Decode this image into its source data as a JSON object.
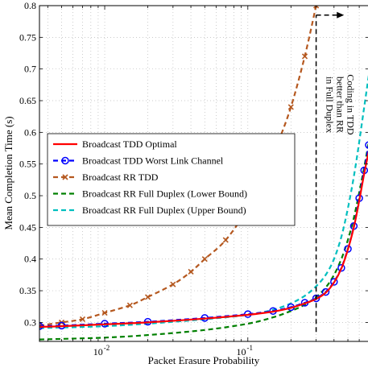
{
  "chart_data": {
    "type": "line",
    "xlabel": "Packet Erasure Probability",
    "ylabel": "Mean Completion Time (s)",
    "xscale": "log",
    "xlim": [
      0.0035,
      0.7
    ],
    "ylim": [
      0.27,
      0.8
    ],
    "grid": true,
    "legend_position": "center-left",
    "x_ticks": [
      {
        "value": 0.01,
        "label": "10",
        "exp": "-2"
      },
      {
        "value": 0.1,
        "label": "10",
        "exp": "-1"
      }
    ],
    "y_ticks": [
      0.3,
      0.35,
      0.4,
      0.45,
      0.5,
      0.55,
      0.6,
      0.65,
      0.7,
      0.75,
      0.8
    ],
    "y_tick_labels": [
      "0.3",
      "0.35",
      "0.4",
      "0.45",
      "0.5",
      "0.55",
      "0.6",
      "0.65",
      "0.7",
      "0.75",
      "0.8"
    ],
    "annotation": {
      "lines": [
        "Coding in TDD",
        "better than RR",
        "in Full Duplex"
      ],
      "x": 0.3,
      "y_bottom": 0.285,
      "y_top": 0.785,
      "arrow_to_x": 0.47
    },
    "series": [
      {
        "name": "Broadcast TDD Optimal",
        "color": "#ff0000",
        "dash": "solid",
        "marker": "none",
        "x": [
          0.0035,
          0.005,
          0.01,
          0.02,
          0.05,
          0.1,
          0.15,
          0.2,
          0.25,
          0.3,
          0.35,
          0.4,
          0.45,
          0.5,
          0.55,
          0.6,
          0.65,
          0.7
        ],
        "y": [
          0.293,
          0.294,
          0.297,
          0.3,
          0.306,
          0.312,
          0.317,
          0.323,
          0.33,
          0.337,
          0.347,
          0.363,
          0.385,
          0.415,
          0.45,
          0.492,
          0.535,
          0.57
        ]
      },
      {
        "name": "Broadcast TDD Worst Link Channel",
        "color": "#0000ff",
        "dash": "dashed",
        "marker": "circle",
        "x": [
          0.0035,
          0.005,
          0.01,
          0.02,
          0.05,
          0.1,
          0.15,
          0.2,
          0.25,
          0.3,
          0.35,
          0.4,
          0.45,
          0.5,
          0.55,
          0.6,
          0.65,
          0.7
        ],
        "y": [
          0.294,
          0.295,
          0.298,
          0.301,
          0.307,
          0.313,
          0.318,
          0.324,
          0.331,
          0.338,
          0.348,
          0.364,
          0.386,
          0.416,
          0.452,
          0.496,
          0.54,
          0.58
        ]
      },
      {
        "name": "Broadcast RR TDD",
        "color": "#b5581f",
        "dash": "dashed",
        "marker": "x",
        "x": [
          0.0035,
          0.005,
          0.007,
          0.01,
          0.015,
          0.02,
          0.03,
          0.04,
          0.05,
          0.07,
          0.1,
          0.13,
          0.16,
          0.2,
          0.25,
          0.3
        ],
        "y": [
          0.295,
          0.3,
          0.305,
          0.315,
          0.327,
          0.34,
          0.36,
          0.38,
          0.4,
          0.43,
          0.48,
          0.53,
          0.58,
          0.64,
          0.72,
          0.8
        ]
      },
      {
        "name": "Broadcast RR Full Duplex (Lower Bound)",
        "color": "#008000",
        "dash": "dashed",
        "marker": "none",
        "x": [
          0.0035,
          0.005,
          0.01,
          0.02,
          0.05,
          0.1,
          0.15,
          0.2,
          0.25,
          0.3,
          0.35,
          0.4,
          0.45,
          0.5,
          0.55,
          0.6,
          0.65,
          0.7
        ],
        "y": [
          0.273,
          0.274,
          0.276,
          0.28,
          0.288,
          0.298,
          0.308,
          0.318,
          0.328,
          0.34,
          0.355,
          0.375,
          0.4,
          0.43,
          0.465,
          0.505,
          0.545,
          0.585
        ]
      },
      {
        "name": "Broadcast RR Full Duplex (Upper Bound)",
        "color": "#00bfbf",
        "dash": "dashed",
        "marker": "none",
        "x": [
          0.0035,
          0.005,
          0.01,
          0.02,
          0.05,
          0.1,
          0.15,
          0.2,
          0.25,
          0.3,
          0.35,
          0.4,
          0.45,
          0.5,
          0.55,
          0.6,
          0.65,
          0.7
        ],
        "y": [
          0.291,
          0.292,
          0.294,
          0.298,
          0.305,
          0.312,
          0.32,
          0.33,
          0.342,
          0.357,
          0.375,
          0.4,
          0.435,
          0.48,
          0.53,
          0.585,
          0.64,
          0.69
        ]
      }
    ]
  }
}
